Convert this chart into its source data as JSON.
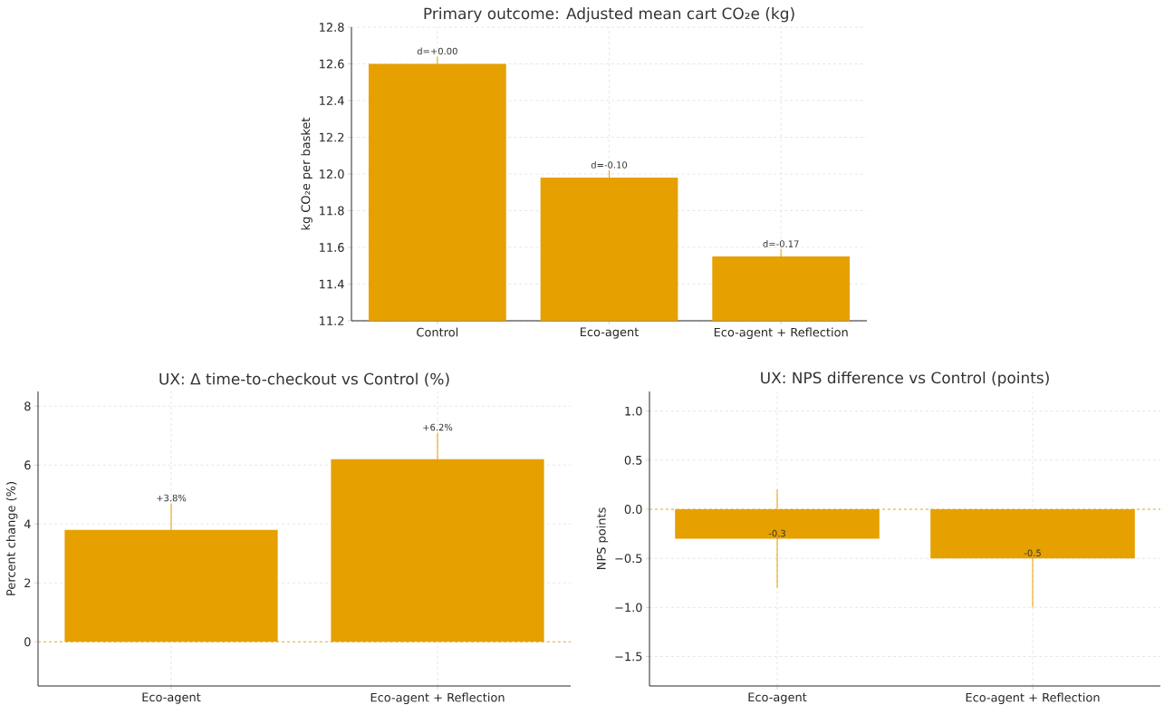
{
  "chart_data": [
    {
      "type": "bar",
      "title": "Primary outcome: Adjusted mean cart CO₂e (kg)",
      "ylabel": "kg CO₂e per basket",
      "categories": [
        "Control",
        "Eco-agent",
        "Eco-agent + Reflection"
      ],
      "values": [
        12.6,
        11.98,
        11.55
      ],
      "errors": [
        0.04,
        0.04,
        0.04
      ],
      "color": "#e6a000",
      "annotations": [
        {
          "text": "d=+0.00",
          "x": "Control",
          "y": 12.6
        },
        {
          "text": "d=-0.10",
          "x": "Eco-agent",
          "y": 11.98
        },
        {
          "text": "d=-0.17",
          "x": "Eco-agent + Reflection",
          "y": 11.55
        }
      ],
      "ylim": [
        11.2,
        12.8
      ],
      "yticks": [
        11.2,
        11.4,
        11.6,
        11.8,
        {
          "value": 12.0,
          "label": "12.0"
        },
        12.2,
        12.4,
        12.6,
        12.8
      ],
      "grid": true
    },
    {
      "type": "bar",
      "title": "UX: Δ time-to-checkout vs Control (%)",
      "ylabel": "Percent change (%)",
      "categories": [
        "Eco-agent",
        "Eco-agent + Reflection"
      ],
      "values": [
        3.8,
        6.2
      ],
      "errors": [
        0.9,
        0.9
      ],
      "color": "#e6a000",
      "value_labels": [
        "+3.8%",
        "+6.2%"
      ],
      "ylim": [
        -1.5,
        8.5
      ],
      "yticks": [
        0,
        2,
        4,
        6,
        8
      ],
      "grid": true,
      "ref_lines": [
        {
          "axis": "y",
          "value": 0,
          "color": "#e6a000",
          "line_style": "dashed"
        }
      ]
    },
    {
      "type": "bar",
      "title": "UX: NPS difference vs Control (points)",
      "ylabel": "NPS points",
      "categories": [
        "Eco-agent",
        "Eco-agent + Reflection"
      ],
      "values": [
        -0.3,
        -0.5
      ],
      "errors": [
        0.5,
        0.5
      ],
      "color": "#e6a000",
      "data_labels": true,
      "ylim": [
        -1.8,
        1.2
      ],
      "yticks": [
        {
          "value": -1.5,
          "label": "−1.5"
        },
        {
          "value": -1.0,
          "label": "−1.0"
        },
        {
          "value": -0.5,
          "label": "−0.5"
        },
        {
          "value": 0.0,
          "label": "0.0"
        },
        {
          "value": 0.5,
          "label": "0.5"
        },
        {
          "value": 1.0,
          "label": "1.0"
        }
      ],
      "grid": true,
      "ref_lines": [
        {
          "axis": "y",
          "value": 0,
          "color": "#e6a000",
          "line_style": "dashed"
        }
      ]
    }
  ]
}
